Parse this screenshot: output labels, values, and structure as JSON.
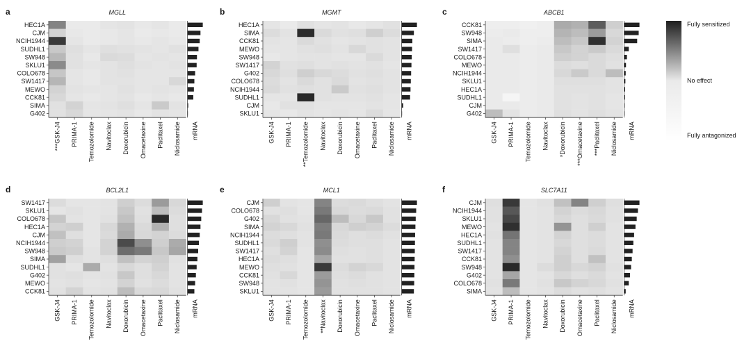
{
  "colorbar": {
    "top_label": "Fully sensitized",
    "mid_label": "No effect",
    "bottom_label": "Fully antagonized",
    "colors": [
      "#1e1e1e",
      "#eaeaea",
      "#ffffff"
    ]
  },
  "chart_data": [
    {
      "type": "heatmap",
      "panel": "a",
      "title": "MGLL",
      "rows": [
        "HEC1A",
        "CJM",
        "NCIH1944",
        "SUDHL1",
        "SW948",
        "SKLU1",
        "COLO678",
        "SW1417",
        "MEWO",
        "CCK81",
        "SIMA",
        "G402"
      ],
      "cols": [
        "***GSK-J4",
        "PRIMA-1",
        "Temozolomide",
        "Navitoclax",
        "Doxorubicin",
        "Omacetaxine",
        "Paclitaxel",
        "Niclosamide"
      ],
      "mrna_label": "mRNA",
      "values": [
        [
          0.55,
          0.1,
          0.1,
          0.12,
          0.13,
          0.11,
          0.12,
          0.1
        ],
        [
          0.2,
          0.11,
          0.1,
          0.11,
          0.12,
          0.1,
          0.11,
          0.1
        ],
        [
          0.88,
          0.12,
          0.1,
          0.11,
          0.12,
          0.11,
          0.12,
          0.11
        ],
        [
          0.25,
          0.15,
          0.12,
          0.15,
          0.14,
          0.13,
          0.12,
          0.14
        ],
        [
          0.32,
          0.14,
          0.11,
          0.17,
          0.16,
          0.12,
          0.13,
          0.12
        ],
        [
          0.52,
          0.14,
          0.12,
          0.13,
          0.15,
          0.13,
          0.12,
          0.13
        ],
        [
          0.26,
          0.12,
          0.11,
          0.13,
          0.14,
          0.12,
          0.12,
          0.12
        ],
        [
          0.33,
          0.12,
          0.11,
          0.13,
          0.13,
          0.12,
          0.12,
          0.18
        ],
        [
          0.2,
          0.13,
          0.12,
          0.12,
          0.14,
          0.12,
          0.13,
          0.12
        ],
        [
          0.18,
          0.12,
          0.11,
          0.12,
          0.13,
          0.11,
          0.12,
          0.11
        ],
        [
          0.14,
          0.2,
          0.12,
          0.13,
          0.15,
          0.12,
          0.24,
          0.13
        ],
        [
          0.14,
          0.18,
          0.12,
          0.12,
          0.13,
          0.11,
          0.13,
          0.12
        ]
      ],
      "mrna": [
        1.0,
        0.85,
        0.8,
        0.72,
        0.62,
        0.6,
        0.5,
        0.45,
        0.42,
        0.38,
        0.05,
        0.02
      ]
    },
    {
      "type": "heatmap",
      "panel": "b",
      "title": "MGMT",
      "rows": [
        "HEC1A",
        "SIMA",
        "CCK81",
        "MEWO",
        "SW948",
        "SW1417",
        "G402",
        "COLO678",
        "NCIH1944",
        "SUDHL1",
        "CJM",
        "SKLU1"
      ],
      "cols": [
        "GSK-J4",
        "PRIMA-1",
        "**Temozolomide",
        "Navitoclax",
        "Doxorubicin",
        "Omacetaxine",
        "Paclitaxel",
        "Niclosamide"
      ],
      "mrna_label": "mRNA",
      "values": [
        [
          0.12,
          0.1,
          0.14,
          0.12,
          0.13,
          0.11,
          0.12,
          0.14
        ],
        [
          0.16,
          0.13,
          0.94,
          0.17,
          0.14,
          0.15,
          0.22,
          0.16
        ],
        [
          0.13,
          0.12,
          0.17,
          0.14,
          0.12,
          0.13,
          0.14,
          0.13
        ],
        [
          0.12,
          0.12,
          0.14,
          0.15,
          0.13,
          0.18,
          0.14,
          0.13
        ],
        [
          0.11,
          0.12,
          0.13,
          0.13,
          0.12,
          0.12,
          0.17,
          0.13
        ],
        [
          0.2,
          0.14,
          0.15,
          0.13,
          0.14,
          0.13,
          0.14,
          0.12
        ],
        [
          0.18,
          0.15,
          0.22,
          0.18,
          0.16,
          0.14,
          0.15,
          0.13
        ],
        [
          0.16,
          0.13,
          0.17,
          0.14,
          0.17,
          0.13,
          0.14,
          0.13
        ],
        [
          0.17,
          0.14,
          0.15,
          0.14,
          0.24,
          0.14,
          0.15,
          0.13
        ],
        [
          0.12,
          0.12,
          0.95,
          0.14,
          0.13,
          0.13,
          0.14,
          0.12
        ],
        [
          0.11,
          0.14,
          0.14,
          0.12,
          0.12,
          0.12,
          0.13,
          0.12
        ],
        [
          0.12,
          0.11,
          0.13,
          0.12,
          0.13,
          0.12,
          0.16,
          0.12
        ]
      ],
      "mrna": [
        1.0,
        0.8,
        0.7,
        0.68,
        0.66,
        0.64,
        0.62,
        0.6,
        0.58,
        0.55,
        0.1,
        0.02
      ]
    },
    {
      "type": "heatmap",
      "panel": "c",
      "title": "ABCB1",
      "rows": [
        "CCK81",
        "SW948",
        "SIMA",
        "SW1417",
        "COLO678",
        "MEWO",
        "NCIH1944",
        "SKLU1",
        "HEC1A",
        "SUDHL1",
        "CJM",
        "G402"
      ],
      "cols": [
        "GSK-J4",
        "PRIMA-1",
        "Temozolomide",
        "Navitoclax",
        "*Doxorubicin",
        "***Omacetaxine",
        "***Paclitaxel",
        "Niclosamide"
      ],
      "mrna_label": "mRNA",
      "values": [
        [
          0.08,
          0.08,
          0.07,
          0.08,
          0.38,
          0.35,
          0.72,
          0.22
        ],
        [
          0.09,
          0.1,
          0.08,
          0.08,
          0.34,
          0.3,
          0.45,
          0.18
        ],
        [
          0.1,
          0.09,
          0.08,
          0.09,
          0.3,
          0.25,
          0.92,
          0.2
        ],
        [
          0.1,
          0.15,
          0.09,
          0.1,
          0.25,
          0.2,
          0.24,
          0.17
        ],
        [
          0.1,
          0.1,
          0.09,
          0.1,
          0.22,
          0.2,
          0.17,
          0.15
        ],
        [
          0.1,
          0.1,
          0.09,
          0.1,
          0.16,
          0.15,
          0.17,
          0.14
        ],
        [
          0.1,
          0.1,
          0.09,
          0.1,
          0.18,
          0.24,
          0.17,
          0.3
        ],
        [
          0.1,
          0.1,
          0.09,
          0.1,
          0.15,
          0.15,
          0.15,
          0.13
        ],
        [
          0.1,
          0.1,
          0.09,
          0.1,
          0.14,
          0.14,
          0.14,
          0.13
        ],
        [
          0.1,
          0.05,
          0.09,
          0.1,
          0.14,
          0.13,
          0.14,
          0.12
        ],
        [
          0.1,
          0.1,
          0.09,
          0.1,
          0.14,
          0.13,
          0.14,
          0.12
        ],
        [
          0.3,
          0.13,
          0.09,
          0.1,
          0.15,
          0.13,
          0.15,
          0.13
        ]
      ],
      "mrna": [
        1.0,
        0.95,
        0.85,
        0.3,
        0.18,
        0.12,
        0.1,
        0.08,
        0.06,
        0.05,
        0.03,
        0.02
      ]
    },
    {
      "type": "heatmap",
      "panel": "d",
      "title": "BCL2L1",
      "rows": [
        "SW1417",
        "SKLU1",
        "COLO678",
        "HEC1A",
        "CJM",
        "NCIH1944",
        "SW948",
        "SIMA",
        "SUDHL1",
        "G402",
        "MEWO",
        "CCK81"
      ],
      "cols": [
        "GSK-J4",
        "PRIMA-1",
        "Temozolomide",
        "Navitoclax",
        "Doxorubicin",
        "Omacetaxine",
        "Paclitaxel",
        "Niclosamide"
      ],
      "mrna_label": "mRNA",
      "values": [
        [
          0.16,
          0.12,
          0.12,
          0.13,
          0.22,
          0.16,
          0.45,
          0.18
        ],
        [
          0.12,
          0.14,
          0.12,
          0.13,
          0.25,
          0.14,
          0.3,
          0.16
        ],
        [
          0.26,
          0.13,
          0.12,
          0.14,
          0.28,
          0.15,
          0.95,
          0.15
        ],
        [
          0.2,
          0.22,
          0.12,
          0.18,
          0.35,
          0.17,
          0.35,
          0.15
        ],
        [
          0.28,
          0.15,
          0.12,
          0.17,
          0.38,
          0.18,
          0.2,
          0.16
        ],
        [
          0.22,
          0.2,
          0.12,
          0.2,
          0.8,
          0.5,
          0.22,
          0.38
        ],
        [
          0.24,
          0.22,
          0.13,
          0.2,
          0.65,
          0.6,
          0.25,
          0.4
        ],
        [
          0.42,
          0.15,
          0.13,
          0.15,
          0.28,
          0.2,
          0.22,
          0.14
        ],
        [
          0.14,
          0.12,
          0.38,
          0.13,
          0.18,
          0.15,
          0.2,
          0.13
        ],
        [
          0.14,
          0.15,
          0.13,
          0.14,
          0.25,
          0.15,
          0.18,
          0.13
        ],
        [
          0.13,
          0.14,
          0.12,
          0.13,
          0.2,
          0.14,
          0.16,
          0.13
        ],
        [
          0.14,
          0.2,
          0.13,
          0.14,
          0.3,
          0.17,
          0.18,
          0.14
        ]
      ],
      "mrna": [
        1.0,
        0.95,
        0.9,
        0.85,
        0.8,
        0.75,
        0.7,
        0.65,
        0.6,
        0.55,
        0.5,
        0.45
      ]
    },
    {
      "type": "heatmap",
      "panel": "e",
      "title": "MCL1",
      "rows": [
        "CJM",
        "COLO678",
        "G402",
        "SIMA",
        "NCIH1944",
        "SUDHL1",
        "SW1417",
        "HEC1A",
        "MEWO",
        "CCK81",
        "SW948",
        "SKLU1"
      ],
      "cols": [
        "GSK-J4",
        "PRIMA-1",
        "Temozolomide",
        "**Navitoclax",
        "Doxorubicin",
        "Omacetaxine",
        "Paclitaxel",
        "Niclosamide"
      ],
      "mrna_label": "mRNA",
      "values": [
        [
          0.22,
          0.13,
          0.12,
          0.55,
          0.16,
          0.17,
          0.15,
          0.13
        ],
        [
          0.14,
          0.15,
          0.12,
          0.6,
          0.18,
          0.16,
          0.17,
          0.14
        ],
        [
          0.18,
          0.14,
          0.13,
          0.68,
          0.3,
          0.18,
          0.25,
          0.14
        ],
        [
          0.2,
          0.18,
          0.14,
          0.58,
          0.18,
          0.22,
          0.2,
          0.16
        ],
        [
          0.16,
          0.15,
          0.13,
          0.6,
          0.17,
          0.15,
          0.16,
          0.14
        ],
        [
          0.17,
          0.22,
          0.13,
          0.5,
          0.16,
          0.15,
          0.15,
          0.13
        ],
        [
          0.15,
          0.2,
          0.12,
          0.52,
          0.15,
          0.14,
          0.15,
          0.13
        ],
        [
          0.16,
          0.15,
          0.12,
          0.4,
          0.14,
          0.14,
          0.15,
          0.13
        ],
        [
          0.15,
          0.14,
          0.12,
          0.88,
          0.16,
          0.2,
          0.18,
          0.13
        ],
        [
          0.14,
          0.18,
          0.12,
          0.45,
          0.15,
          0.16,
          0.14,
          0.13
        ],
        [
          0.13,
          0.14,
          0.12,
          0.48,
          0.14,
          0.15,
          0.14,
          0.13
        ],
        [
          0.13,
          0.13,
          0.12,
          0.45,
          0.14,
          0.14,
          0.14,
          0.13
        ]
      ],
      "mrna": [
        1.0,
        0.95,
        0.92,
        0.9,
        0.88,
        0.87,
        0.86,
        0.85,
        0.84,
        0.83,
        0.82,
        0.8
      ]
    },
    {
      "type": "heatmap",
      "panel": "f",
      "title": "SLC7A11",
      "rows": [
        "CJM",
        "NCIH1944",
        "SKLU1",
        "MEWO",
        "HEC1A",
        "SUDHL1",
        "SW1417",
        "CCK81",
        "SW948",
        "G402",
        "COLO678",
        "SIMA"
      ],
      "cols": [
        "GSK-J4",
        "PRIMA-1",
        "Temozolomide",
        "Navitoclax",
        "Doxorubicin",
        "Omacetaxine",
        "Paclitaxel",
        "Niclosamide"
      ],
      "mrna_label": "mRNA",
      "values": [
        [
          0.15,
          0.88,
          0.12,
          0.14,
          0.28,
          0.55,
          0.22,
          0.15
        ],
        [
          0.14,
          0.75,
          0.12,
          0.13,
          0.2,
          0.16,
          0.18,
          0.14
        ],
        [
          0.14,
          0.82,
          0.12,
          0.13,
          0.18,
          0.15,
          0.17,
          0.14
        ],
        [
          0.13,
          0.92,
          0.12,
          0.13,
          0.48,
          0.15,
          0.22,
          0.13
        ],
        [
          0.14,
          0.62,
          0.12,
          0.13,
          0.2,
          0.15,
          0.16,
          0.13
        ],
        [
          0.13,
          0.55,
          0.12,
          0.13,
          0.18,
          0.15,
          0.16,
          0.13
        ],
        [
          0.13,
          0.55,
          0.12,
          0.13,
          0.2,
          0.15,
          0.17,
          0.13
        ],
        [
          0.13,
          0.5,
          0.12,
          0.13,
          0.22,
          0.15,
          0.28,
          0.13
        ],
        [
          0.13,
          0.95,
          0.12,
          0.16,
          0.22,
          0.18,
          0.2,
          0.14
        ],
        [
          0.13,
          0.4,
          0.12,
          0.13,
          0.18,
          0.15,
          0.17,
          0.13
        ],
        [
          0.14,
          0.6,
          0.12,
          0.14,
          0.25,
          0.2,
          0.18,
          0.14
        ],
        [
          0.13,
          0.3,
          0.12,
          0.13,
          0.16,
          0.14,
          0.15,
          0.13
        ]
      ],
      "mrna": [
        1.0,
        0.9,
        0.82,
        0.74,
        0.65,
        0.6,
        0.55,
        0.5,
        0.45,
        0.38,
        0.3,
        0.1
      ]
    }
  ]
}
